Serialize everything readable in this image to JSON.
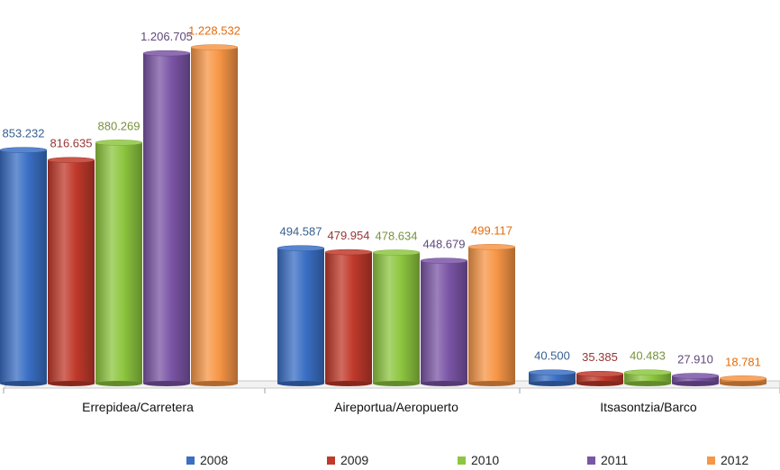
{
  "chart_data": {
    "type": "bar",
    "categories": [
      "Errepidea/Carretera",
      "Aireportua/Aeropuerto",
      "Itsasontzia/Barco"
    ],
    "series": [
      {
        "name": "2008",
        "values": [
          853232,
          494587,
          40500
        ],
        "labels": [
          "853.232",
          "494.587",
          "40.500"
        ],
        "color": "#3a6fc4",
        "label_color": "#376092"
      },
      {
        "name": "2009",
        "values": [
          816635,
          479954,
          35385
        ],
        "labels": [
          "816.635",
          "479.954",
          "35.385"
        ],
        "color": "#c0392b",
        "label_color": "#953735"
      },
      {
        "name": "2010",
        "values": [
          880269,
          478634,
          40483
        ],
        "labels": [
          "880.269",
          "478.634",
          "40.483"
        ],
        "color": "#8dc63f",
        "label_color": "#76923c"
      },
      {
        "name": "2011",
        "values": [
          1206705,
          448679,
          27910
        ],
        "labels": [
          "1.206.705",
          "448.679",
          "27.910"
        ],
        "color": "#7b55a6",
        "label_color": "#5f497a"
      },
      {
        "name": "2012",
        "values": [
          1228532,
          499117,
          18781
        ],
        "labels": [
          "1.228.532",
          "499.117",
          "18.781"
        ],
        "color": "#f79646",
        "label_color": "#e46c0a"
      }
    ],
    "ylim": [
      0,
      1250000
    ],
    "grid": false,
    "legend_position": "bottom",
    "style": "3d-cylinder"
  }
}
